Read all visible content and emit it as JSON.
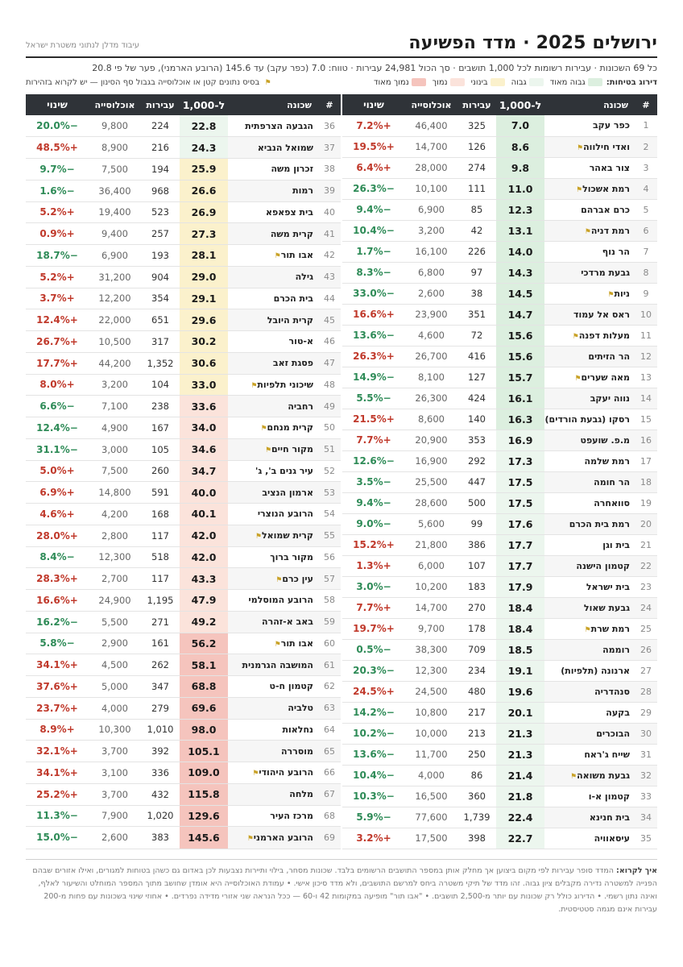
{
  "header": {
    "title": "ירושלים 2025 · מדד הפשיעה",
    "credit": "עיבוד מדלן לנתוני משטרת ישראל",
    "subline": "כל 69 השכונות · עבירות רשומות לכל 1,000 תושבים · סך הכול 24,981 עבירות · טווח: 7.0 (כפר עקב) עד 145.6 (הרובע הארמני), פער של פי 20.8"
  },
  "legend": {
    "label": "דירוג בטיחות:",
    "items": [
      {
        "label": "גבוה מאוד",
        "color": "#dcefdf"
      },
      {
        "label": "גבוה",
        "color": "#ecf6ee"
      },
      {
        "label": "בינוני",
        "color": "#fbf1cc"
      },
      {
        "label": "נמוך",
        "color": "#fbe3db"
      },
      {
        "label": "נמוך מאוד",
        "color": "#f5c4bd"
      }
    ],
    "flag_note": "בסיס נתונים קטן או אוכלוסייה בגבול סף הסינון — יש לקרוא בזהירות",
    "flag_icon": "flag-icon"
  },
  "columns": {
    "num": "#",
    "name": "שכונה",
    "rate": "ל-1,000",
    "offenses": "עבירות",
    "population": "אוכלוסייה",
    "change": "שינוי"
  },
  "tier_colors": {
    "very_high": "#dcefdf",
    "high": "#ecf6ee",
    "medium": "#fbf1cc",
    "low": "#fbe3db",
    "very_low": "#f5c4bd"
  },
  "rows_right": [
    {
      "n": "1",
      "name": "כפר עקב",
      "flag": false,
      "rate": "7.0",
      "off": "325",
      "pop": "46,400",
      "chg": "+7.2%",
      "tier": "very_high"
    },
    {
      "n": "2",
      "name": "ואדי חילווה",
      "flag": true,
      "rate": "8.6",
      "off": "126",
      "pop": "14,700",
      "chg": "+19.5%",
      "tier": "very_high"
    },
    {
      "n": "3",
      "name": "צור באהר",
      "flag": false,
      "rate": "9.8",
      "off": "274",
      "pop": "28,000",
      "chg": "+6.4%",
      "tier": "very_high"
    },
    {
      "n": "4",
      "name": "רמת אשכול",
      "flag": true,
      "rate": "11.0",
      "off": "111",
      "pop": "10,100",
      "chg": "−26.3%",
      "tier": "very_high"
    },
    {
      "n": "5",
      "name": "כרם אברהם",
      "flag": false,
      "rate": "12.3",
      "off": "85",
      "pop": "6,900",
      "chg": "−9.4%",
      "tier": "very_high"
    },
    {
      "n": "6",
      "name": "רמת דניה",
      "flag": true,
      "rate": "13.1",
      "off": "42",
      "pop": "3,200",
      "chg": "−10.4%",
      "tier": "very_high"
    },
    {
      "n": "7",
      "name": "הר נוף",
      "flag": false,
      "rate": "14.0",
      "off": "226",
      "pop": "16,100",
      "chg": "−1.7%",
      "tier": "very_high"
    },
    {
      "n": "8",
      "name": "גבעת מרדכי",
      "flag": false,
      "rate": "14.3",
      "off": "97",
      "pop": "6,800",
      "chg": "−8.3%",
      "tier": "very_high"
    },
    {
      "n": "9",
      "name": "ניות",
      "flag": true,
      "rate": "14.5",
      "off": "38",
      "pop": "2,600",
      "chg": "−33.0%",
      "tier": "very_high"
    },
    {
      "n": "10",
      "name": "ראס אל עמוד",
      "flag": false,
      "rate": "14.7",
      "off": "351",
      "pop": "23,900",
      "chg": "+16.6%",
      "tier": "very_high"
    },
    {
      "n": "11",
      "name": "מעלות דפנה",
      "flag": true,
      "rate": "15.6",
      "off": "72",
      "pop": "4,600",
      "chg": "−13.6%",
      "tier": "very_high"
    },
    {
      "n": "12",
      "name": "הר הזיתים",
      "flag": false,
      "rate": "15.6",
      "off": "416",
      "pop": "26,700",
      "chg": "+26.3%",
      "tier": "very_high"
    },
    {
      "n": "13",
      "name": "מאה שערים",
      "flag": true,
      "rate": "15.7",
      "off": "127",
      "pop": "8,100",
      "chg": "−14.9%",
      "tier": "very_high"
    },
    {
      "n": "14",
      "name": "נווה יעקב",
      "flag": false,
      "rate": "16.1",
      "off": "424",
      "pop": "26,300",
      "chg": "−5.5%",
      "tier": "very_high"
    },
    {
      "n": "15",
      "name": "רסקו (גבעת הורדים)",
      "flag": true,
      "rate": "16.3",
      "off": "140",
      "pop": "8,600",
      "chg": "+21.5%",
      "tier": "very_high"
    },
    {
      "n": "16",
      "name": "מ.פ. שועפט",
      "flag": false,
      "rate": "16.9",
      "off": "353",
      "pop": "20,900",
      "chg": "+7.7%",
      "tier": "high"
    },
    {
      "n": "17",
      "name": "רמת שלמה",
      "flag": false,
      "rate": "17.3",
      "off": "292",
      "pop": "16,900",
      "chg": "−12.6%",
      "tier": "high"
    },
    {
      "n": "18",
      "name": "הר חומה",
      "flag": false,
      "rate": "17.5",
      "off": "447",
      "pop": "25,500",
      "chg": "−3.5%",
      "tier": "high"
    },
    {
      "n": "19",
      "name": "סוואחרה",
      "flag": false,
      "rate": "17.5",
      "off": "500",
      "pop": "28,600",
      "chg": "−9.4%",
      "tier": "high"
    },
    {
      "n": "20",
      "name": "רמת בית הכרם",
      "flag": false,
      "rate": "17.6",
      "off": "99",
      "pop": "5,600",
      "chg": "−9.0%",
      "tier": "high"
    },
    {
      "n": "21",
      "name": "בית וגן",
      "flag": false,
      "rate": "17.7",
      "off": "386",
      "pop": "21,800",
      "chg": "+15.2%",
      "tier": "high"
    },
    {
      "n": "22",
      "name": "קטמון הישנה",
      "flag": false,
      "rate": "17.7",
      "off": "107",
      "pop": "6,000",
      "chg": "+1.3%",
      "tier": "high"
    },
    {
      "n": "23",
      "name": "בית ישראל",
      "flag": false,
      "rate": "17.9",
      "off": "183",
      "pop": "10,200",
      "chg": "−3.0%",
      "tier": "high"
    },
    {
      "n": "24",
      "name": "גבעת שאול",
      "flag": false,
      "rate": "18.4",
      "off": "270",
      "pop": "14,700",
      "chg": "+7.7%",
      "tier": "high"
    },
    {
      "n": "25",
      "name": "רמת שרת",
      "flag": true,
      "rate": "18.4",
      "off": "178",
      "pop": "9,700",
      "chg": "+19.7%",
      "tier": "high"
    },
    {
      "n": "26",
      "name": "רוממה",
      "flag": false,
      "rate": "18.5",
      "off": "709",
      "pop": "38,300",
      "chg": "−0.5%",
      "tier": "high"
    },
    {
      "n": "27",
      "name": "ארנונה (תלפיות)",
      "flag": false,
      "rate": "19.1",
      "off": "234",
      "pop": "12,300",
      "chg": "−20.3%",
      "tier": "high"
    },
    {
      "n": "28",
      "name": "סנהדריה",
      "flag": false,
      "rate": "19.6",
      "off": "480",
      "pop": "24,500",
      "chg": "+24.5%",
      "tier": "high"
    },
    {
      "n": "29",
      "name": "בקעה",
      "flag": false,
      "rate": "20.1",
      "off": "217",
      "pop": "10,800",
      "chg": "−14.2%",
      "tier": "high"
    },
    {
      "n": "30",
      "name": "הבוכרים",
      "flag": false,
      "rate": "21.3",
      "off": "213",
      "pop": "10,000",
      "chg": "−10.2%",
      "tier": "high"
    },
    {
      "n": "31",
      "name": "שייח ג'ראח",
      "flag": false,
      "rate": "21.3",
      "off": "250",
      "pop": "11,700",
      "chg": "−13.6%",
      "tier": "high"
    },
    {
      "n": "32",
      "name": "גבעת משואה",
      "flag": true,
      "rate": "21.4",
      "off": "86",
      "pop": "4,000",
      "chg": "−10.4%",
      "tier": "high"
    },
    {
      "n": "33",
      "name": "קטמון א-ו",
      "flag": false,
      "rate": "21.8",
      "off": "360",
      "pop": "16,500",
      "chg": "−10.3%",
      "tier": "high"
    },
    {
      "n": "34",
      "name": "בית חנינא",
      "flag": false,
      "rate": "22.4",
      "off": "1,739",
      "pop": "77,600",
      "chg": "−5.9%",
      "tier": "high"
    },
    {
      "n": "35",
      "name": "עיסאוויה",
      "flag": false,
      "rate": "22.7",
      "off": "398",
      "pop": "17,500",
      "chg": "+3.2%",
      "tier": "high"
    }
  ],
  "rows_left": [
    {
      "n": "36",
      "name": "הגבעה הצרפתית",
      "flag": false,
      "rate": "22.8",
      "off": "224",
      "pop": "9,800",
      "chg": "−20.0%",
      "tier": "high"
    },
    {
      "n": "37",
      "name": "שמואל הנביא",
      "flag": false,
      "rate": "24.3",
      "off": "216",
      "pop": "8,900",
      "chg": "+48.5%",
      "tier": "high"
    },
    {
      "n": "38",
      "name": "זכרון משה",
      "flag": false,
      "rate": "25.9",
      "off": "194",
      "pop": "7,500",
      "chg": "−9.7%",
      "tier": "medium"
    },
    {
      "n": "39",
      "name": "רמות",
      "flag": false,
      "rate": "26.6",
      "off": "968",
      "pop": "36,400",
      "chg": "−1.6%",
      "tier": "medium"
    },
    {
      "n": "40",
      "name": "בית צפאפא",
      "flag": false,
      "rate": "26.9",
      "off": "523",
      "pop": "19,400",
      "chg": "+5.2%",
      "tier": "medium"
    },
    {
      "n": "41",
      "name": "קרית משה",
      "flag": false,
      "rate": "27.3",
      "off": "257",
      "pop": "9,400",
      "chg": "+0.9%",
      "tier": "medium"
    },
    {
      "n": "42",
      "name": "אבו תור",
      "flag": true,
      "rate": "28.1",
      "off": "193",
      "pop": "6,900",
      "chg": "−18.7%",
      "tier": "medium"
    },
    {
      "n": "43",
      "name": "גילה",
      "flag": false,
      "rate": "29.0",
      "off": "904",
      "pop": "31,200",
      "chg": "+5.2%",
      "tier": "medium"
    },
    {
      "n": "44",
      "name": "בית הכרם",
      "flag": false,
      "rate": "29.1",
      "off": "354",
      "pop": "12,200",
      "chg": "+3.7%",
      "tier": "medium"
    },
    {
      "n": "45",
      "name": "קרית היובל",
      "flag": false,
      "rate": "29.6",
      "off": "651",
      "pop": "22,000",
      "chg": "+12.4%",
      "tier": "medium"
    },
    {
      "n": "46",
      "name": "א-טור",
      "flag": false,
      "rate": "30.2",
      "off": "317",
      "pop": "10,500",
      "chg": "+26.7%",
      "tier": "medium"
    },
    {
      "n": "47",
      "name": "פסגת זאב",
      "flag": false,
      "rate": "30.6",
      "off": "1,352",
      "pop": "44,200",
      "chg": "+17.7%",
      "tier": "medium"
    },
    {
      "n": "48",
      "name": "שיכוני תלפיות",
      "flag": true,
      "rate": "33.0",
      "off": "104",
      "pop": "3,200",
      "chg": "+8.0%",
      "tier": "medium"
    },
    {
      "n": "49",
      "name": "רחביה",
      "flag": false,
      "rate": "33.6",
      "off": "238",
      "pop": "7,100",
      "chg": "−6.6%",
      "tier": "low"
    },
    {
      "n": "50",
      "name": "קרית מנחם",
      "flag": true,
      "rate": "34.0",
      "off": "167",
      "pop": "4,900",
      "chg": "−12.4%",
      "tier": "low"
    },
    {
      "n": "51",
      "name": "מקור חיים",
      "flag": true,
      "rate": "34.6",
      "off": "105",
      "pop": "3,000",
      "chg": "−31.1%",
      "tier": "low"
    },
    {
      "n": "52",
      "name": "עיר גנים ב', ג'",
      "flag": false,
      "rate": "34.7",
      "off": "260",
      "pop": "7,500",
      "chg": "+5.0%",
      "tier": "low"
    },
    {
      "n": "53",
      "name": "ארמון הנציב",
      "flag": false,
      "rate": "40.0",
      "off": "591",
      "pop": "14,800",
      "chg": "+6.9%",
      "tier": "low"
    },
    {
      "n": "54",
      "name": "הרובע הנוצרי",
      "flag": false,
      "rate": "40.1",
      "off": "168",
      "pop": "4,200",
      "chg": "+4.6%",
      "tier": "low"
    },
    {
      "n": "55",
      "name": "קרית שמואל",
      "flag": true,
      "rate": "42.0",
      "off": "117",
      "pop": "2,800",
      "chg": "+28.0%",
      "tier": "low"
    },
    {
      "n": "56",
      "name": "מקור ברוך",
      "flag": false,
      "rate": "42.0",
      "off": "518",
      "pop": "12,300",
      "chg": "−8.4%",
      "tier": "low"
    },
    {
      "n": "57",
      "name": "עין כרם",
      "flag": true,
      "rate": "43.3",
      "off": "117",
      "pop": "2,700",
      "chg": "+28.3%",
      "tier": "low"
    },
    {
      "n": "58",
      "name": "הרובע המוסלמי",
      "flag": false,
      "rate": "47.9",
      "off": "1,195",
      "pop": "24,900",
      "chg": "+16.6%",
      "tier": "low"
    },
    {
      "n": "59",
      "name": "באב א-זהרה",
      "flag": false,
      "rate": "49.2",
      "off": "271",
      "pop": "5,500",
      "chg": "−16.2%",
      "tier": "low"
    },
    {
      "n": "60",
      "name": "אבו תור",
      "flag": true,
      "rate": "56.2",
      "off": "161",
      "pop": "2,900",
      "chg": "−5.8%",
      "tier": "very_low"
    },
    {
      "n": "61",
      "name": "המושבה הגרמנית",
      "flag": false,
      "rate": "58.1",
      "off": "262",
      "pop": "4,500",
      "chg": "+34.1%",
      "tier": "very_low"
    },
    {
      "n": "62",
      "name": "קטמון ח-ט",
      "flag": false,
      "rate": "68.8",
      "off": "347",
      "pop": "5,000",
      "chg": "+37.6%",
      "tier": "very_low"
    },
    {
      "n": "63",
      "name": "טלביה",
      "flag": false,
      "rate": "69.6",
      "off": "279",
      "pop": "4,000",
      "chg": "+23.7%",
      "tier": "very_low"
    },
    {
      "n": "64",
      "name": "נחלאות",
      "flag": false,
      "rate": "98.0",
      "off": "1,010",
      "pop": "10,300",
      "chg": "+8.9%",
      "tier": "very_low"
    },
    {
      "n": "65",
      "name": "מוסררה",
      "flag": false,
      "rate": "105.1",
      "off": "392",
      "pop": "3,700",
      "chg": "+32.1%",
      "tier": "very_low"
    },
    {
      "n": "66",
      "name": "הרובע היהודי",
      "flag": true,
      "rate": "109.0",
      "off": "336",
      "pop": "3,100",
      "chg": "+34.1%",
      "tier": "very_low"
    },
    {
      "n": "67",
      "name": "מלחה",
      "flag": false,
      "rate": "115.8",
      "off": "432",
      "pop": "3,700",
      "chg": "+25.2%",
      "tier": "very_low"
    },
    {
      "n": "68",
      "name": "מרכז העיר",
      "flag": false,
      "rate": "129.6",
      "off": "1,020",
      "pop": "7,900",
      "chg": "−11.3%",
      "tier": "very_low"
    },
    {
      "n": "69",
      "name": "הרובע הארמני",
      "flag": true,
      "rate": "145.6",
      "off": "383",
      "pop": "2,600",
      "chg": "−15.0%",
      "tier": "very_low"
    }
  ],
  "footnote": {
    "label": "איך לקרוא:",
    "text": "המדד סופר עבירות לפי מקום ביצוען אך מחלק אותן במספר התושבים הרשומים בלבד. שכונות מסחר, בילוי ותיירות נצבעות לכן באדום גם כשהן בטוחות למגורים, ואילו אזורים שבהם הפנייה למשטרה נדירה מקבלים ציון גבוה. זהו מדד של תיקי משטרה ביחס למרשם התושבים, ולא מדד סיכון אישי. • עמודת האוכלוסייה היא אומדן שחושב מתוך המספר המוחלט והשיעור לאלף, ואינה נתון רשמי. • הדירוג כולל רק שכונות עם יותר מ-2,500 תושבים. • \"אבו תור\" מופיעה במקומות 42 ו-60 — ככל הנראה שני אזורי מדידה נפרדים. • אחוזי שינוי בשכונות עם פחות מ-200 עבירות אינם מגמה סטטיסטית."
  }
}
